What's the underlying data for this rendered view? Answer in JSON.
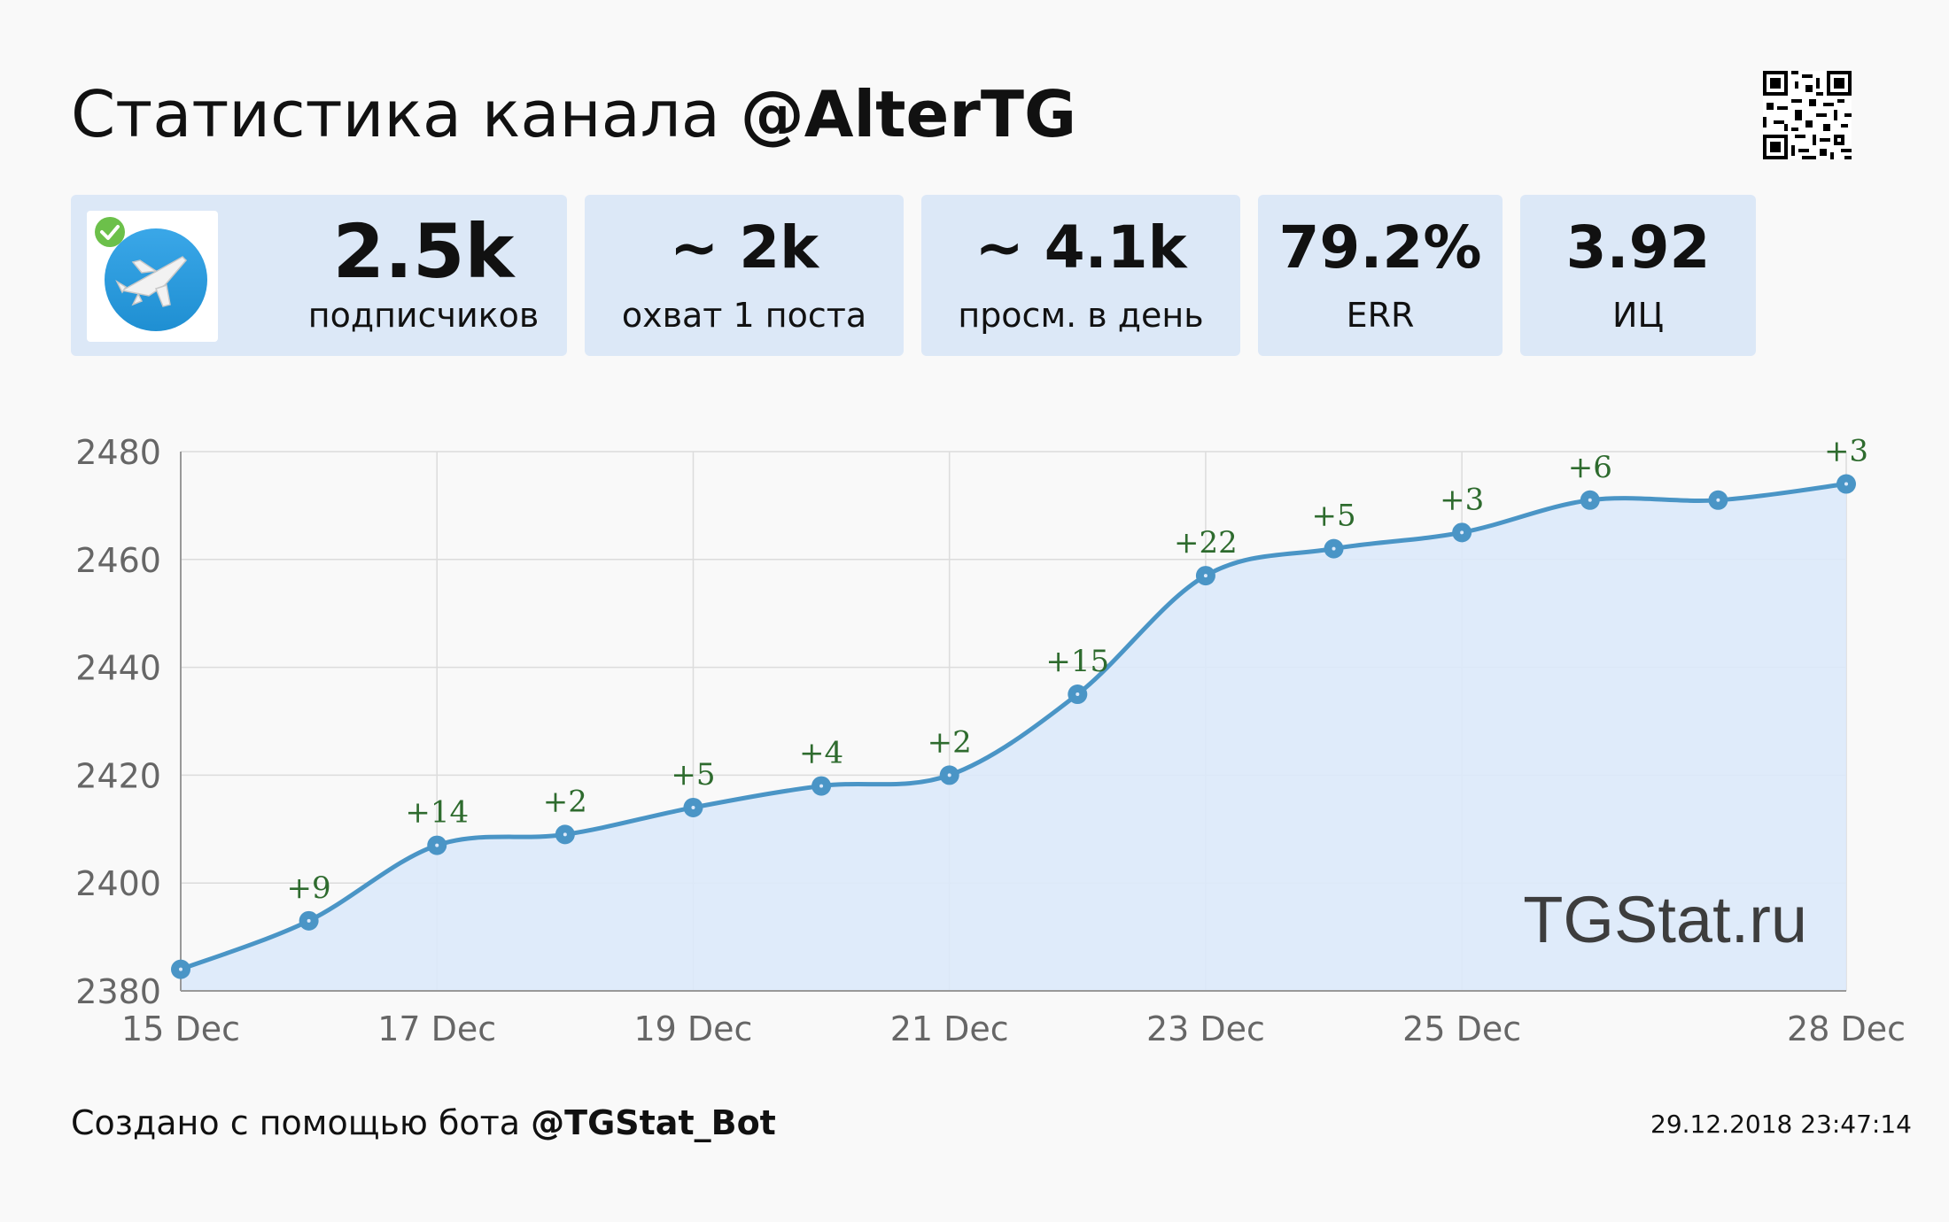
{
  "header": {
    "title_prefix": "Статистика канала ",
    "channel": "@AlterTG"
  },
  "stats": [
    {
      "value": "2.5k",
      "label": "подписчиков"
    },
    {
      "value": "~ 2k",
      "label": "охват 1 поста"
    },
    {
      "value": "~ 4.1k",
      "label": "просм. в день"
    },
    {
      "value": "79.2%",
      "label": "ERR"
    },
    {
      "value": "3.92",
      "label": "ИЦ"
    }
  ],
  "avatar": {
    "icon": "paper-plane-jet-icon",
    "badge": "verified-check-icon",
    "badge_color": "#6cc04a",
    "circle_color": "#2a9ee0"
  },
  "watermark": "TGStat.ru",
  "footer": {
    "prefix": "Создано с помощью бота ",
    "bot": "@TGStat_Bot",
    "timestamp": "29.12.2018 23:47:14"
  },
  "colors": {
    "line": "#4a95c6",
    "fill": "#dce9fa",
    "label": "#2e6b2e",
    "card": "#dce8f7"
  },
  "chart_data": {
    "type": "area",
    "x": [
      "15 Dec",
      "16 Dec",
      "17 Dec",
      "18 Dec",
      "19 Dec",
      "20 Dec",
      "21 Dec",
      "22 Dec",
      "23 Dec",
      "24 Dec",
      "25 Dec",
      "26 Dec",
      "27 Dec",
      "28 Dec"
    ],
    "values": [
      2384,
      2393,
      2407,
      2409,
      2414,
      2418,
      2420,
      2435,
      2457,
      2462,
      2465,
      2471,
      2471,
      2474
    ],
    "data_labels": [
      "",
      "+9",
      "+14",
      "+2",
      "+5",
      "+4",
      "+2",
      "+15",
      "+22",
      "+5",
      "+3",
      "+6",
      "",
      "+3"
    ],
    "x_tick_labels": [
      "15 Dec",
      "17 Dec",
      "19 Dec",
      "21 Dec",
      "23 Dec",
      "25 Dec",
      "28 Dec"
    ],
    "y_ticks": [
      2380,
      2400,
      2420,
      2440,
      2460,
      2480
    ],
    "ylim": [
      2380,
      2480
    ],
    "grid": true,
    "legend": "none"
  }
}
